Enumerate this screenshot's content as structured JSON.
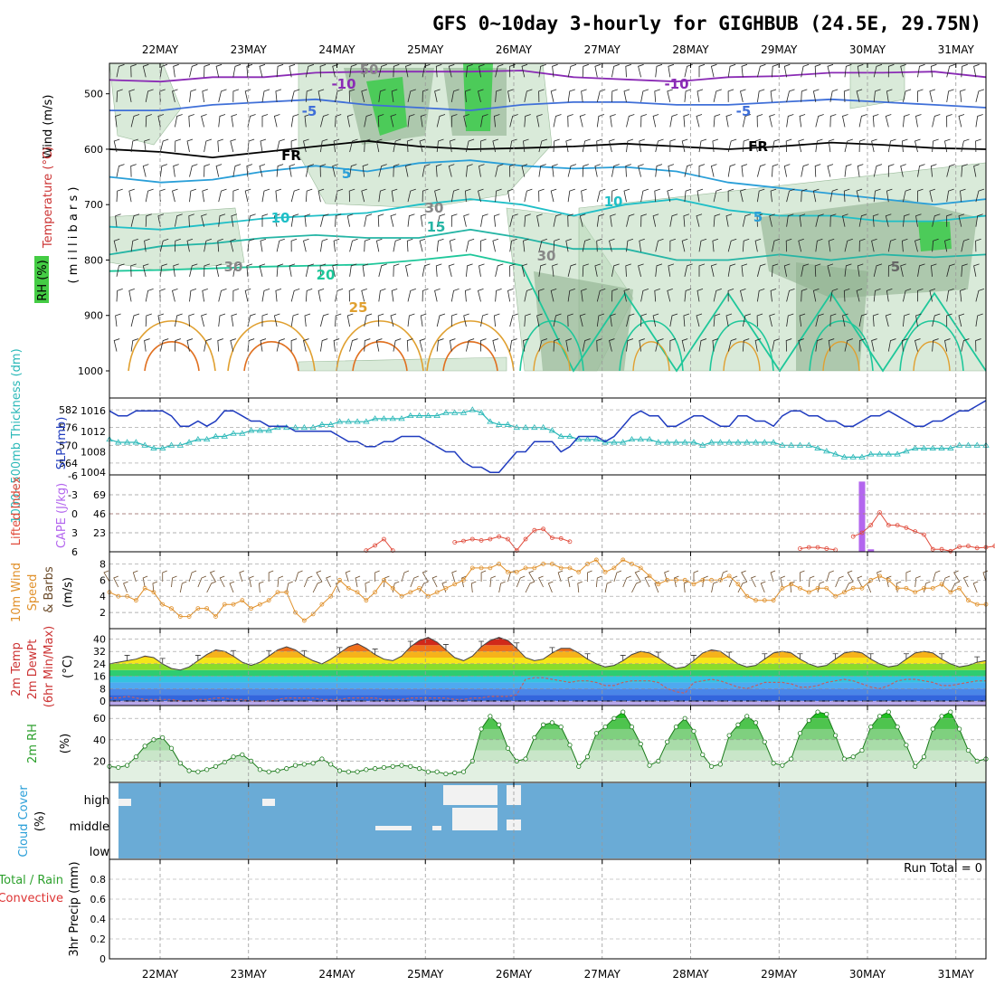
{
  "title": "GFS 0~10day 3-hourly for GIGHBUB (24.5E, 29.75N)",
  "dates": [
    "22MAY",
    "23MAY",
    "24MAY",
    "25MAY",
    "26MAY",
    "27MAY",
    "28MAY",
    "29MAY",
    "30MAY",
    "31MAY"
  ],
  "colors": {
    "rh_fill": "#b9d8b9",
    "rh_dark": "#8fb08f",
    "rh_green": "#33cc44",
    "slp": "#1f3bbf",
    "thickness": "#2ab8b8",
    "lifted": "#e04a3a",
    "cape": "#b366ee",
    "wind10m": "#e0902a",
    "barb": "#6b4b2a",
    "rh2m": "#2ca02c",
    "cloud": "#6aabd6",
    "grid": "#999999"
  },
  "panels": {
    "upper": {
      "ylabel_wind": "Wind (m/s)",
      "ylabel_temp": "Temperature (°C)",
      "ylabel_rh": "RH (%)",
      "ylabel_p": "( m i l l i b a r s )",
      "yticks": [
        "500",
        "600",
        "700",
        "800",
        "900",
        "1000"
      ],
      "fr_label": "FR",
      "contour_labels": [
        "-10",
        "-10",
        "-5",
        "-5",
        "5",
        "5",
        "10",
        "10",
        "15",
        "20",
        "25",
        "5",
        "30",
        "30",
        "50",
        "30"
      ]
    },
    "thickness": {
      "ylabel": "1000~500mb Thickness (dm)",
      "ylabel_slp": "SLP (mb)",
      "left_ticks": [
        "582",
        "576",
        "570",
        "564"
      ],
      "right_ticks": [
        "1016",
        "1012",
        "1008",
        "1004"
      ]
    },
    "cape": {
      "ylabel_li": "Lifted Index",
      "ylabel_cape": "CAPE (J/kg)",
      "left_ticks": [
        "-6",
        "-3",
        "0",
        "3",
        "6"
      ],
      "right_ticks": [
        "69",
        "46",
        "23"
      ]
    },
    "wind10m": {
      "ylabel1": "10m Wind",
      "ylabel2": "Speed",
      "ylabel3": "& Barbs",
      "unit": "(m/s)",
      "ticks": [
        "8",
        "6",
        "4",
        "2"
      ]
    },
    "temp2m": {
      "ylabel1": "2m Temp",
      "ylabel2": "2m DewPt",
      "ylabel3": "(6hr Min/Max)",
      "unit": "(°C)",
      "ticks": [
        "40",
        "32",
        "24",
        "16",
        "8",
        "0"
      ]
    },
    "rh2m": {
      "ylabel": "2m RH",
      "unit": "(%)",
      "ticks": [
        "60",
        "40",
        "20"
      ]
    },
    "cloud": {
      "ylabel": "Cloud Cover",
      "unit": "(%)",
      "levels": [
        "high",
        "middle",
        "low"
      ]
    },
    "precip": {
      "ylabel": "3hr Precip (mm)",
      "legend1": "Total / Rain",
      "legend2": "Convective",
      "ticks": [
        "0.8",
        "0.6",
        "0.4",
        "0.2",
        "0"
      ],
      "run_total": "Run Total = 0"
    }
  },
  "chart_data": [
    {
      "type": "line",
      "name": "SLP",
      "unit": "mb",
      "x_range": [
        "21MAY 12Z",
        "31MAY 12Z"
      ],
      "x_step_hours": 3,
      "ylim": [
        1004,
        1017
      ],
      "values": [
        1016,
        1015,
        1015,
        1016,
        1016,
        1016,
        1016,
        1015,
        1013,
        1013,
        1014,
        1013,
        1014,
        1016,
        1016,
        1015,
        1014,
        1014,
        1013,
        1013,
        1013,
        1012,
        1012,
        1012,
        1012,
        1012,
        1011,
        1010,
        1010,
        1009,
        1009,
        1010,
        1010,
        1011,
        1011,
        1011,
        1010,
        1009,
        1008,
        1008,
        1006,
        1005,
        1005,
        1004,
        1004,
        1006,
        1008,
        1008,
        1010,
        1010,
        1010,
        1008,
        1009,
        1011,
        1011,
        1011,
        1010,
        1011,
        1013,
        1015,
        1016,
        1015,
        1015,
        1013,
        1013,
        1014,
        1015,
        1015,
        1014,
        1013,
        1013,
        1015,
        1015,
        1014,
        1014,
        1013,
        1015,
        1016,
        1016,
        1015,
        1015,
        1014,
        1014,
        1013,
        1013,
        1014,
        1015,
        1015,
        1016,
        1015,
        1014,
        1013,
        1013,
        1014,
        1014,
        1015,
        1016,
        1016,
        1017,
        1018
      ]
    },
    {
      "type": "line",
      "name": "Thickness",
      "unit": "dm",
      "ylim": [
        561,
        585
      ],
      "values": [
        572,
        571,
        571,
        571,
        570,
        569,
        569,
        570,
        570,
        571,
        572,
        572,
        573,
        573,
        574,
        574,
        575,
        575,
        575,
        576,
        576,
        576,
        576,
        576,
        577,
        577,
        578,
        578,
        578,
        578,
        579,
        579,
        579,
        579,
        580,
        580,
        580,
        580,
        581,
        581,
        581,
        582,
        581,
        578,
        577,
        577,
        576,
        576,
        576,
        576,
        575,
        573,
        573,
        572,
        572,
        572,
        571,
        571,
        571,
        572,
        572,
        572,
        571,
        571,
        571,
        571,
        571,
        570,
        571,
        571,
        571,
        571,
        571,
        571,
        571,
        571,
        570,
        570,
        570,
        570,
        569,
        568,
        567,
        566,
        566,
        566,
        567,
        567,
        567,
        567,
        568,
        569,
        569,
        569,
        569,
        569,
        570,
        570,
        570,
        570
      ]
    },
    {
      "type": "line",
      "name": "Lifted Index",
      "ylim": [
        -6,
        6
      ],
      "values": [
        6,
        6,
        6,
        6,
        6,
        6,
        6,
        6,
        6,
        6,
        6,
        6,
        6,
        6,
        6,
        6,
        6,
        6,
        6,
        6,
        6,
        6,
        6,
        6,
        6,
        6,
        6,
        6,
        6,
        5.8,
        5,
        4,
        5.8,
        6,
        6,
        6,
        6,
        6,
        6,
        4.5,
        4.3,
        4,
        4.2,
        4,
        3.6,
        4,
        5.8,
        4,
        2.6,
        2.4,
        3.8,
        3.9,
        4.4,
        6,
        6,
        6,
        6,
        6,
        6,
        6,
        6,
        6,
        6,
        6,
        6,
        6,
        6,
        6,
        6,
        6,
        6,
        6,
        6,
        6,
        6,
        6,
        6,
        6,
        5.5,
        5.3,
        5.3,
        5.5,
        5.7,
        6,
        3.6,
        3,
        1.8,
        -0.2,
        1.8,
        1.8,
        2.2,
        2.8,
        3.3,
        5.6,
        5.6,
        5.9,
        5.2,
        5.1,
        5.4,
        5.3,
        5.1,
        5.2
      ]
    },
    {
      "type": "bar",
      "name": "CAPE",
      "unit": "J/kg",
      "categories": [
        "30MAY 06Z",
        "30MAY 09Z"
      ],
      "values": [
        85,
        3
      ]
    },
    {
      "type": "line",
      "name": "10m Wind Speed",
      "unit": "m/s",
      "ylim": [
        0,
        9
      ],
      "values": [
        4.5,
        4,
        4,
        3.5,
        5,
        4.5,
        3,
        2.5,
        1.5,
        1.5,
        2.5,
        2.5,
        1.5,
        3,
        3,
        3.5,
        2.5,
        3,
        3.5,
        4.5,
        4.5,
        2,
        1,
        1.8,
        3,
        4,
        6,
        5,
        4.5,
        3.5,
        4.5,
        6,
        5,
        4,
        4.5,
        5,
        4,
        4.5,
        5,
        5.5,
        6,
        7.5,
        7.5,
        7.5,
        8,
        7,
        7,
        7.5,
        7.5,
        8,
        8,
        7.5,
        7.5,
        7,
        8,
        8.5,
        7,
        7.5,
        8.5,
        8,
        7.5,
        6.5,
        5.5,
        6,
        6,
        6,
        5.5,
        6,
        6,
        6,
        6.5,
        5.5,
        4,
        3.5,
        3.5,
        3.5,
        5,
        5.5,
        5,
        4.5,
        5,
        5,
        4,
        4.5,
        5,
        5,
        6,
        6.5,
        6,
        5,
        5,
        4.5,
        5,
        5,
        5.5,
        4.5,
        5,
        3.5,
        3,
        3
      ]
    },
    {
      "type": "area",
      "name": "2m Temp",
      "unit": "°C",
      "ylim": [
        -3,
        44
      ],
      "values": [
        24,
        25,
        26,
        27,
        29,
        28,
        24,
        21,
        20,
        22,
        26,
        30,
        33,
        32,
        29,
        25,
        23,
        25,
        29,
        33,
        35,
        33,
        29,
        26,
        24,
        27,
        31,
        35,
        37,
        34,
        30,
        27,
        26,
        29,
        35,
        39,
        41,
        38,
        33,
        28,
        26,
        29,
        35,
        39,
        41,
        39,
        34,
        28,
        26,
        27,
        31,
        34,
        34,
        31,
        27,
        24,
        22,
        23,
        26,
        30,
        32,
        31,
        28,
        24,
        21,
        22,
        26,
        31,
        33,
        32,
        28,
        24,
        22,
        23,
        27,
        31,
        32,
        31,
        27,
        24,
        22,
        23,
        27,
        31,
        32,
        31,
        27,
        24,
        22,
        23,
        27,
        31,
        32,
        31,
        27,
        24,
        22,
        23,
        25,
        26
      ]
    },
    {
      "type": "line",
      "name": "2m DewPt",
      "unit": "°C",
      "values": [
        2,
        2,
        3,
        2,
        1,
        1,
        1,
        1,
        0,
        0,
        1,
        1,
        2,
        2,
        1,
        1,
        0,
        0,
        0,
        1,
        2,
        2,
        2,
        2,
        1,
        1,
        1,
        2,
        2,
        2,
        2,
        1,
        1,
        1,
        2,
        2,
        2,
        2,
        2,
        1,
        1,
        2,
        2,
        3,
        3,
        3,
        4,
        14,
        15,
        15,
        14,
        13,
        12,
        13,
        13,
        12,
        10,
        10,
        12,
        13,
        13,
        13,
        12,
        8,
        6,
        5,
        12,
        13,
        14,
        13,
        11,
        9,
        8,
        10,
        12,
        12,
        12,
        11,
        9,
        9,
        10,
        12,
        13,
        14,
        13,
        11,
        9,
        8,
        10,
        13,
        14,
        14,
        13,
        12,
        10,
        10,
        11,
        12,
        13,
        13
      ]
    },
    {
      "type": "area",
      "name": "2m RH",
      "unit": "%",
      "ylim": [
        0,
        70
      ],
      "values": [
        15,
        14,
        16,
        24,
        34,
        40,
        42,
        32,
        18,
        11,
        10,
        12,
        15,
        19,
        24,
        26,
        20,
        12,
        10,
        11,
        13,
        16,
        17,
        18,
        22,
        17,
        11,
        10,
        10,
        12,
        13,
        14,
        15,
        16,
        15,
        13,
        10,
        10,
        8,
        9,
        10,
        20,
        50,
        62,
        54,
        32,
        20,
        22,
        42,
        54,
        56,
        52,
        35,
        15,
        24,
        46,
        52,
        60,
        66,
        52,
        36,
        16,
        20,
        38,
        52,
        60,
        48,
        26,
        15,
        17,
        44,
        54,
        62,
        56,
        38,
        18,
        16,
        22,
        46,
        58,
        66,
        64,
        44,
        22,
        24,
        30,
        52,
        62,
        66,
        52,
        35,
        15,
        24,
        50,
        62,
        66,
        50,
        30,
        20,
        22
      ]
    },
    {
      "type": "table",
      "name": "3hr Precip",
      "unit": "mm",
      "ylim": [
        0,
        0.9
      ],
      "run_total": 0
    }
  ]
}
